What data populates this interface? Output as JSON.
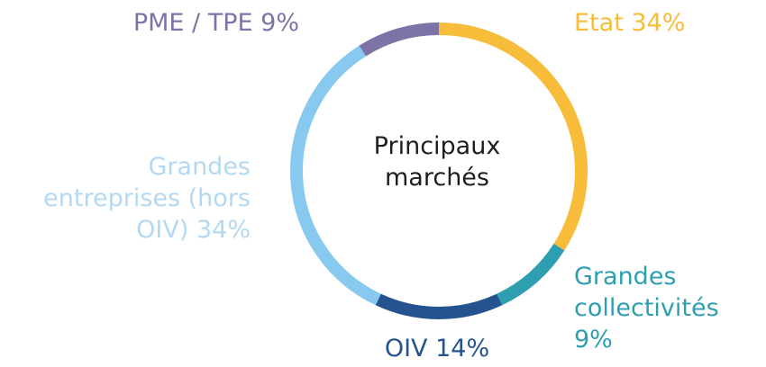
{
  "chart_data": {
    "type": "donut",
    "title": "Principaux marchés",
    "categories": [
      "Etat",
      "Grandes collectivités",
      "OIV",
      "Grandes entreprises (hors OIV)",
      "PME / TPE"
    ],
    "values": [
      34,
      9,
      14,
      34,
      9
    ],
    "value_labels": [
      "34%",
      "9%",
      "14%",
      "34%",
      "9%"
    ],
    "colors": [
      "#f7bd3a",
      "#2e9fb0",
      "#245390",
      "#88c9ef",
      "#7d73a6"
    ]
  }
}
